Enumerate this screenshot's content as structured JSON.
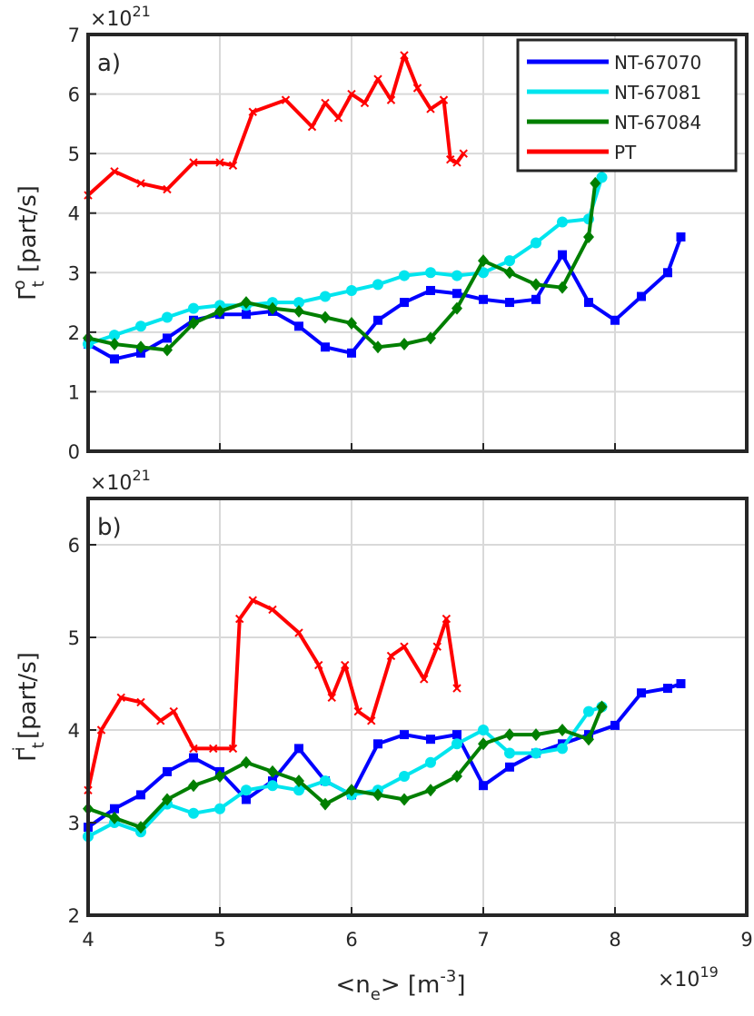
{
  "chart_data": [
    {
      "type": "line",
      "panel_label": "a)",
      "ylabel_main": "Γ",
      "ylabel_sub": "t",
      "ylabel_sup": "o",
      "ylabel_unit": " [part/s]",
      "y_exponent_base": "×10",
      "y_exponent": "21",
      "xlim": [
        4,
        9
      ],
      "ylim": [
        0,
        7
      ],
      "xticks": [
        4,
        5,
        6,
        7,
        8,
        9
      ],
      "yticks": [
        0,
        1,
        2,
        3,
        4,
        5,
        6,
        7
      ],
      "grid": true,
      "legend_position": "top-right",
      "legend": [
        "NT-67070",
        "NT-67081",
        "NT-67084",
        "PT"
      ],
      "series": [
        {
          "name": "NT-67070",
          "color": "#0000ff",
          "marker": "square",
          "x": [
            4.0,
            4.2,
            4.4,
            4.6,
            4.8,
            5.0,
            5.2,
            5.4,
            5.6,
            5.8,
            6.0,
            6.2,
            6.4,
            6.6,
            6.8,
            7.0,
            7.2,
            7.4,
            7.6,
            7.8,
            8.0,
            8.2,
            8.4,
            8.5
          ],
          "y": [
            1.8,
            1.55,
            1.65,
            1.9,
            2.2,
            2.3,
            2.3,
            2.35,
            2.1,
            1.75,
            1.65,
            2.2,
            2.5,
            2.7,
            2.65,
            2.55,
            2.5,
            2.55,
            3.3,
            2.5,
            2.2,
            2.6,
            3.0,
            3.6
          ]
        },
        {
          "name": "NT-67081",
          "color": "#00e5ee",
          "marker": "circle",
          "x": [
            4.0,
            4.2,
            4.4,
            4.6,
            4.8,
            5.0,
            5.2,
            5.4,
            5.6,
            5.8,
            6.0,
            6.2,
            6.4,
            6.6,
            6.8,
            7.0,
            7.2,
            7.4,
            7.6,
            7.8,
            7.9
          ],
          "y": [
            1.8,
            1.95,
            2.1,
            2.25,
            2.4,
            2.45,
            2.45,
            2.5,
            2.5,
            2.6,
            2.7,
            2.8,
            2.95,
            3.0,
            2.95,
            3.0,
            3.2,
            3.5,
            3.85,
            3.9,
            4.6
          ]
        },
        {
          "name": "NT-67084",
          "color": "#007f00",
          "marker": "diamond",
          "x": [
            4.0,
            4.2,
            4.4,
            4.6,
            4.8,
            5.0,
            5.2,
            5.4,
            5.6,
            5.8,
            6.0,
            6.2,
            6.4,
            6.6,
            6.8,
            7.0,
            7.2,
            7.4,
            7.6,
            7.8,
            7.85
          ],
          "y": [
            1.9,
            1.8,
            1.75,
            1.7,
            2.15,
            2.35,
            2.5,
            2.4,
            2.35,
            2.25,
            2.15,
            1.75,
            1.8,
            1.9,
            2.4,
            3.2,
            3.0,
            2.8,
            2.75,
            3.6,
            4.5
          ]
        },
        {
          "name": "PT",
          "color": "#ff0000",
          "marker": "x",
          "x": [
            4.0,
            4.2,
            4.4,
            4.6,
            4.8,
            5.0,
            5.1,
            5.25,
            5.5,
            5.7,
            5.8,
            5.9,
            6.0,
            6.1,
            6.2,
            6.3,
            6.4,
            6.5,
            6.6,
            6.7,
            6.75,
            6.8,
            6.85
          ],
          "y": [
            4.3,
            4.7,
            4.5,
            4.4,
            4.85,
            4.85,
            4.8,
            5.7,
            5.9,
            5.45,
            5.85,
            5.6,
            6.0,
            5.85,
            6.25,
            5.9,
            6.65,
            6.1,
            5.75,
            5.9,
            4.9,
            4.85,
            5.0
          ]
        }
      ]
    },
    {
      "type": "line",
      "panel_label": "b)",
      "ylabel_main": "Γ",
      "ylabel_sub": "t",
      "ylabel_sup": "i",
      "ylabel_unit": " [part/s]",
      "y_exponent_base": "×10",
      "y_exponent": "21",
      "xlabel_main": "<n",
      "xlabel_sub": "e",
      "xlabel_mid": "> [m",
      "xlabel_sup": "-3",
      "xlabel_end": "]",
      "x_exponent_base": "×10",
      "x_exponent": "19",
      "xlim": [
        4,
        9
      ],
      "ylim": [
        2,
        6.5
      ],
      "xticks": [
        4,
        5,
        6,
        7,
        8,
        9
      ],
      "yticks": [
        2,
        3,
        4,
        5,
        6
      ],
      "grid": true,
      "series": [
        {
          "name": "NT-67070",
          "color": "#0000ff",
          "marker": "square",
          "x": [
            4.0,
            4.2,
            4.4,
            4.6,
            4.8,
            5.0,
            5.2,
            5.4,
            5.6,
            5.8,
            6.0,
            6.2,
            6.4,
            6.6,
            6.8,
            7.0,
            7.2,
            7.4,
            7.6,
            7.8,
            8.0,
            8.2,
            8.4,
            8.5
          ],
          "y": [
            2.95,
            3.15,
            3.3,
            3.55,
            3.7,
            3.55,
            3.25,
            3.45,
            3.8,
            3.45,
            3.3,
            3.85,
            3.95,
            3.9,
            3.95,
            3.4,
            3.6,
            3.75,
            3.85,
            3.95,
            4.05,
            4.4,
            4.45,
            4.5
          ]
        },
        {
          "name": "NT-67081",
          "color": "#00e5ee",
          "marker": "circle",
          "x": [
            4.0,
            4.2,
            4.4,
            4.6,
            4.8,
            5.0,
            5.2,
            5.4,
            5.6,
            5.8,
            6.0,
            6.2,
            6.4,
            6.6,
            6.8,
            7.0,
            7.2,
            7.4,
            7.6,
            7.8,
            7.9
          ],
          "y": [
            2.85,
            3.0,
            2.9,
            3.2,
            3.1,
            3.15,
            3.35,
            3.4,
            3.35,
            3.45,
            3.3,
            3.35,
            3.5,
            3.65,
            3.85,
            4.0,
            3.75,
            3.75,
            3.8,
            4.2,
            4.25
          ]
        },
        {
          "name": "NT-67084",
          "color": "#007f00",
          "marker": "diamond",
          "x": [
            4.0,
            4.2,
            4.4,
            4.6,
            4.8,
            5.0,
            5.2,
            5.4,
            5.6,
            5.8,
            6.0,
            6.2,
            6.4,
            6.6,
            6.8,
            7.0,
            7.2,
            7.4,
            7.6,
            7.8,
            7.9
          ],
          "y": [
            3.15,
            3.05,
            2.95,
            3.25,
            3.4,
            3.5,
            3.65,
            3.55,
            3.45,
            3.2,
            3.35,
            3.3,
            3.25,
            3.35,
            3.5,
            3.85,
            3.95,
            3.95,
            4.0,
            3.9,
            4.25
          ]
        },
        {
          "name": "PT",
          "color": "#ff0000",
          "marker": "x",
          "x": [
            4.0,
            4.1,
            4.25,
            4.4,
            4.55,
            4.65,
            4.8,
            4.95,
            5.1,
            5.15,
            5.25,
            5.4,
            5.6,
            5.75,
            5.85,
            5.95,
            6.05,
            6.15,
            6.3,
            6.4,
            6.55,
            6.65,
            6.72,
            6.8
          ],
          "y": [
            3.35,
            4.0,
            4.35,
            4.3,
            4.1,
            4.2,
            3.8,
            3.8,
            3.8,
            5.2,
            5.4,
            5.3,
            5.05,
            4.7,
            4.35,
            4.7,
            4.2,
            4.1,
            4.8,
            4.9,
            4.55,
            4.9,
            5.2,
            4.45
          ]
        }
      ]
    }
  ]
}
